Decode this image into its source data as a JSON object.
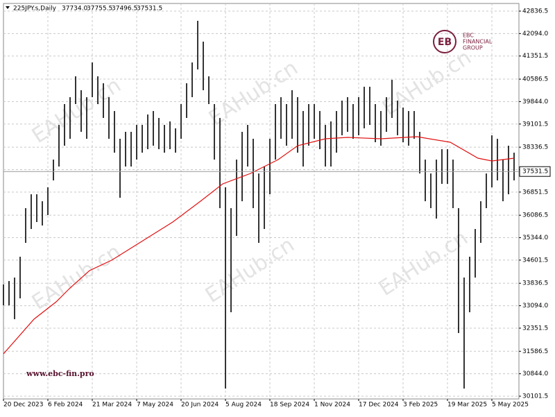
{
  "chart_data": {
    "type": "range-bar",
    "header": {
      "symbol": "225JPY.s,Daily",
      "ohlc": [
        "37734.0",
        "37755.5",
        "37496.5",
        "37531.5"
      ]
    },
    "watermark": "EAHub.cn",
    "logo": {
      "mark": "EB",
      "lines": [
        "EBC",
        "FINANCIAL",
        "GROUP"
      ]
    },
    "website": "www.ebc-fin.pro",
    "last_price": {
      "value": 37531.5,
      "label": "37531.5"
    },
    "bar_color": "#000000",
    "ma_color": "#e01010",
    "grid": true,
    "xlim": [
      0,
      371.5
    ],
    "ylim": [
      30010,
      43089
    ],
    "xticks": [
      {
        "value": 0,
        "label": "20 Dec 2023"
      },
      {
        "value": 32,
        "label": "6 Feb 2024"
      },
      {
        "value": 64,
        "label": "21 Mar 2024"
      },
      {
        "value": 96,
        "label": "7 May 2024"
      },
      {
        "value": 128,
        "label": "20 Jun 2024"
      },
      {
        "value": 160,
        "label": "5 Aug 2024"
      },
      {
        "value": 192,
        "label": "18 Sep 2024"
      },
      {
        "value": 224,
        "label": "1 Nov 2024"
      },
      {
        "value": 256,
        "label": "17 Dec 2024"
      },
      {
        "value": 288,
        "label": "3 Feb 2025"
      },
      {
        "value": 320,
        "label": "19 Mar 2025"
      },
      {
        "value": 352,
        "label": "5 May 2025"
      }
    ],
    "yticks": [
      {
        "value": 30101.5,
        "label": "30101.5"
      },
      {
        "value": 30844,
        "label": "30844.0"
      },
      {
        "value": 31586.5,
        "label": "31586.5"
      },
      {
        "value": 32351.5,
        "label": "32351.5"
      },
      {
        "value": 33094,
        "label": "33094.0"
      },
      {
        "value": 33836.5,
        "label": "33836.5"
      },
      {
        "value": 34601.5,
        "label": "34601.5"
      },
      {
        "value": 35344,
        "label": "35344.0"
      },
      {
        "value": 36086.5,
        "label": "36086.5"
      },
      {
        "value": 36851.5,
        "label": "36851.5"
      },
      {
        "value": 37594,
        "label": "37594.0"
      },
      {
        "value": 38336.5,
        "label": "38336.5"
      },
      {
        "value": 39101.5,
        "label": "39101.5"
      },
      {
        "value": 39844,
        "label": "39844.0"
      },
      {
        "value": 40586.5,
        "label": "40586.5"
      },
      {
        "value": 41351.5,
        "label": "41351.5"
      },
      {
        "value": 42094,
        "label": "42094.0"
      },
      {
        "value": 42836.5,
        "label": "42836.5"
      }
    ],
    "x": [
      0,
      4,
      8,
      12,
      16,
      20,
      24,
      28,
      32,
      36,
      40,
      44,
      48,
      52,
      56,
      60,
      64,
      68,
      72,
      76,
      80,
      84,
      88,
      92,
      96,
      100,
      104,
      108,
      112,
      116,
      120,
      124,
      128,
      132,
      136,
      140,
      144,
      148,
      152,
      156,
      160,
      164,
      168,
      172,
      176,
      180,
      184,
      188,
      192,
      196,
      200,
      204,
      208,
      212,
      216,
      220,
      224,
      228,
      232,
      236,
      240,
      244,
      248,
      252,
      256,
      260,
      264,
      268,
      272,
      276,
      280,
      284,
      288,
      292,
      296,
      300,
      304,
      308,
      312,
      316,
      320,
      324,
      328,
      332,
      336,
      340,
      344,
      348,
      352,
      356,
      360,
      364,
      368
    ],
    "high": [
      33796,
      33910,
      34025,
      34714,
      36320,
      36779,
      36779,
      36549,
      37008,
      37926,
      39073,
      39762,
      39990,
      40680,
      40220,
      39990,
      41138,
      40680,
      40450,
      39990,
      39532,
      38614,
      38844,
      38844,
      39073,
      39073,
      39418,
      39532,
      39303,
      39073,
      39188,
      38959,
      39762,
      40450,
      41138,
      42515,
      41827,
      40680,
      39762,
      39303,
      37008,
      36320,
      37926,
      38844,
      39073,
      38614,
      37467,
      37697,
      38614,
      39762,
      39990,
      39762,
      40220,
      39990,
      39532,
      39762,
      39762,
      39532,
      39073,
      39188,
      39532,
      39876,
      39990,
      39762,
      39990,
      40335,
      40335,
      39762,
      39532,
      39990,
      40565,
      39876,
      39647,
      39532,
      39532,
      38844,
      37926,
      37467,
      37926,
      38270,
      38270,
      37926,
      36320,
      34025,
      34714,
      35631,
      36549,
      37467,
      38729,
      38614,
      37926,
      38385,
      38155
    ],
    "low": [
      33107,
      33107,
      32648,
      33337,
      35172,
      35631,
      35861,
      35746,
      36090,
      37238,
      37697,
      38385,
      38614,
      39762,
      38844,
      38614,
      39990,
      39762,
      39303,
      38614,
      38155,
      36664,
      37697,
      37697,
      37926,
      38155,
      38270,
      38385,
      38270,
      38155,
      38270,
      38155,
      38614,
      39303,
      39990,
      40908,
      40220,
      39762,
      37926,
      36320,
      30354,
      32878,
      35402,
      36549,
      37697,
      36320,
      35172,
      35631,
      36779,
      37926,
      38614,
      38385,
      38614,
      38155,
      37697,
      38385,
      38614,
      38270,
      37697,
      37697,
      38155,
      38729,
      38844,
      38614,
      38729,
      38959,
      39073,
      38500,
      38385,
      38844,
      39303,
      38729,
      38500,
      38385,
      38614,
      37467,
      36549,
      36320,
      35976,
      37123,
      37123,
      36320,
      32189,
      30354,
      32878,
      34025,
      35172,
      36320,
      37008,
      37238,
      36549,
      36779,
      37238
    ],
    "ma": {
      "name": "MA",
      "x": [
        0,
        22,
        38,
        48,
        62,
        78,
        98,
        122,
        142,
        158,
        178,
        198,
        212,
        232,
        248,
        272,
        298,
        322,
        342,
        352,
        368
      ],
      "values": [
        31501,
        32648,
        33222,
        33681,
        34255,
        34599,
        35172,
        35861,
        36549,
        37123,
        37467,
        37926,
        38385,
        38614,
        38660,
        38614,
        38683,
        38500,
        37972,
        37880,
        37972
      ]
    }
  }
}
